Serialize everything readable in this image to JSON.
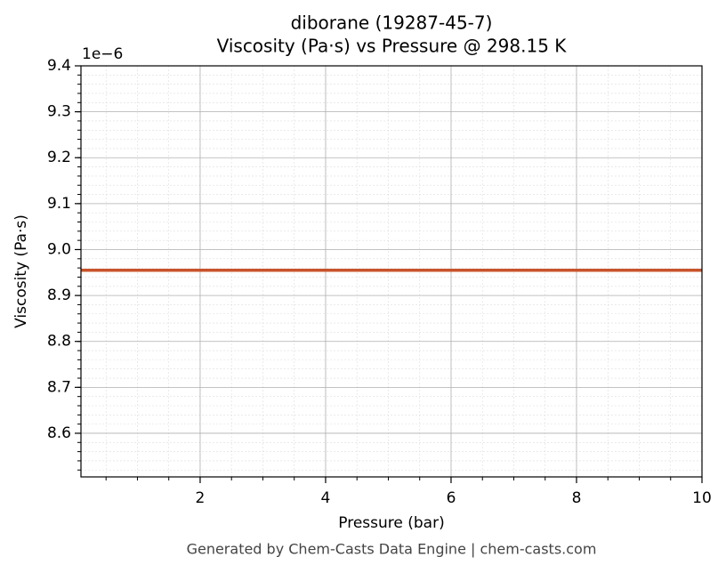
{
  "chart_data": {
    "type": "line",
    "title": "diborane (19287-45-7)",
    "subtitle": "Viscosity (Pa·s) vs Pressure @ 298.15 K",
    "x_label": "Pressure (bar)",
    "y_label": "Viscosity (Pa·s)",
    "y_offset_label": "1e−6",
    "footer": "Generated by Chem-Casts Data Engine | chem-casts.com",
    "x": [
      0.1,
      10
    ],
    "series": [
      {
        "name": "Viscosity",
        "color": "#c8532b",
        "values": [
          8.955,
          8.955
        ]
      }
    ],
    "xlim": [
      0.1,
      10
    ],
    "xticks": [
      2,
      4,
      6,
      8,
      10
    ],
    "ylim": [
      8.505,
      9.4
    ],
    "yticks": [
      8.6,
      8.7,
      8.8,
      8.9,
      {
        "value": 9.0,
        "label": "9.0"
      },
      9.1,
      9.2,
      9.3,
      9.4
    ],
    "grid": true,
    "x_minor_step": 0.5,
    "y_minor_step": 0.02
  }
}
